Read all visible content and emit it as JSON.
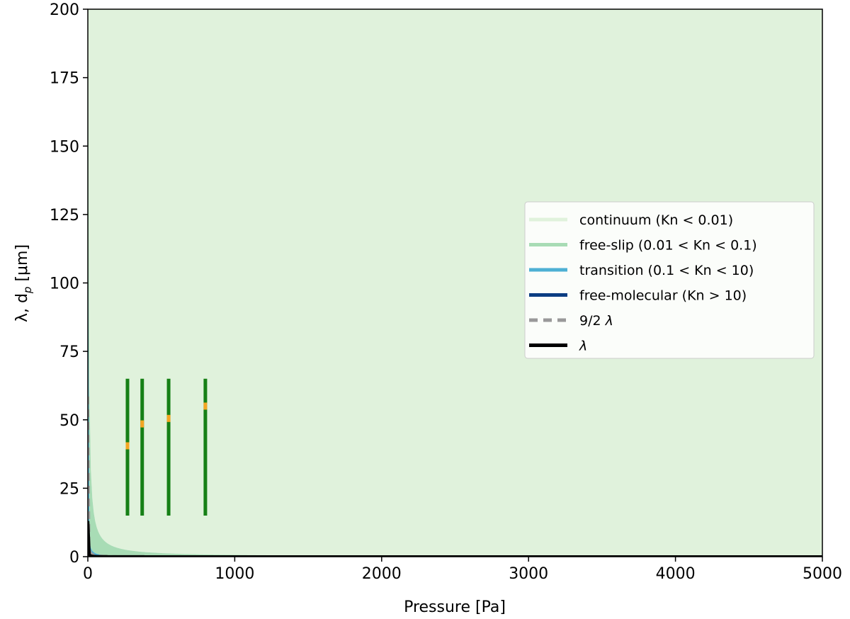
{
  "chart_data": {
    "type": "area",
    "xlabel": "Pressure [Pa]",
    "ylabel_main": "λ, d",
    "ylabel_sub": "p",
    "ylabel_unit": " [μm]",
    "xlim": [
      0,
      5000
    ],
    "ylim": [
      0,
      200
    ],
    "x_ticks": [
      0,
      1000,
      2000,
      3000,
      4000,
      5000
    ],
    "x_tick_labels": [
      "0",
      "1000",
      "2000",
      "3000",
      "4000",
      "5000"
    ],
    "y_ticks": [
      0,
      25,
      50,
      75,
      100,
      125,
      150,
      175,
      200
    ],
    "y_tick_labels": [
      "0",
      "25",
      "50",
      "75",
      "100",
      "125",
      "150",
      "175",
      "200"
    ],
    "grid": false,
    "legend_position": "center-right",
    "mean_free_path_constant_um_pa": 6.5,
    "regions": [
      {
        "name": "continuum (Kn < 0.01)",
        "kn_lower": 0.01,
        "kn_upper": null,
        "color": "#e0f2dc"
      },
      {
        "name": "free-slip (0.01 < Kn < 0.1)",
        "kn_lower": 0.1,
        "kn_upper": 0.01,
        "color": "#a8dcb5"
      },
      {
        "name": "transition (0.1 < Kn < 10)",
        "kn_lower": 10,
        "kn_upper": 0.1,
        "color": "#4db0d4"
      },
      {
        "name": "free-molecular (Kn > 10)",
        "kn_lower": null,
        "kn_upper": 10,
        "color": "#0b3d82"
      }
    ],
    "lines": [
      {
        "name": "9/2 λ",
        "multiplier": 4.5,
        "color": "#999999",
        "dashed": true
      },
      {
        "name": "λ",
        "multiplier": 1,
        "color": "#000000",
        "dashed": false
      }
    ],
    "legend_labels": [
      {
        "text": "continuum (Kn < 0.01)",
        "italic_suffix": ""
      },
      {
        "text": "free-slip (0.01 < Kn < 0.1)",
        "italic_suffix": ""
      },
      {
        "text": "transition (0.1 < Kn < 10)",
        "italic_suffix": ""
      },
      {
        "text": "free-molecular (Kn > 10)",
        "italic_suffix": ""
      },
      {
        "text": "9/2 ",
        "italic_suffix": "λ"
      },
      {
        "text": "",
        "italic_suffix": "λ"
      }
    ],
    "error_bars": [
      {
        "x": 270,
        "y_low": 15,
        "y_high": 65,
        "marker_y": 40.5
      },
      {
        "x": 370,
        "y_low": 15,
        "y_high": 65,
        "marker_y": 48.5
      },
      {
        "x": 550,
        "y_low": 15,
        "y_high": 65,
        "marker_y": 50.5
      },
      {
        "x": 800,
        "y_low": 15,
        "y_high": 65,
        "marker_y": 55
      }
    ],
    "error_bar_color": "#168016",
    "marker_color": "#f5a623"
  }
}
